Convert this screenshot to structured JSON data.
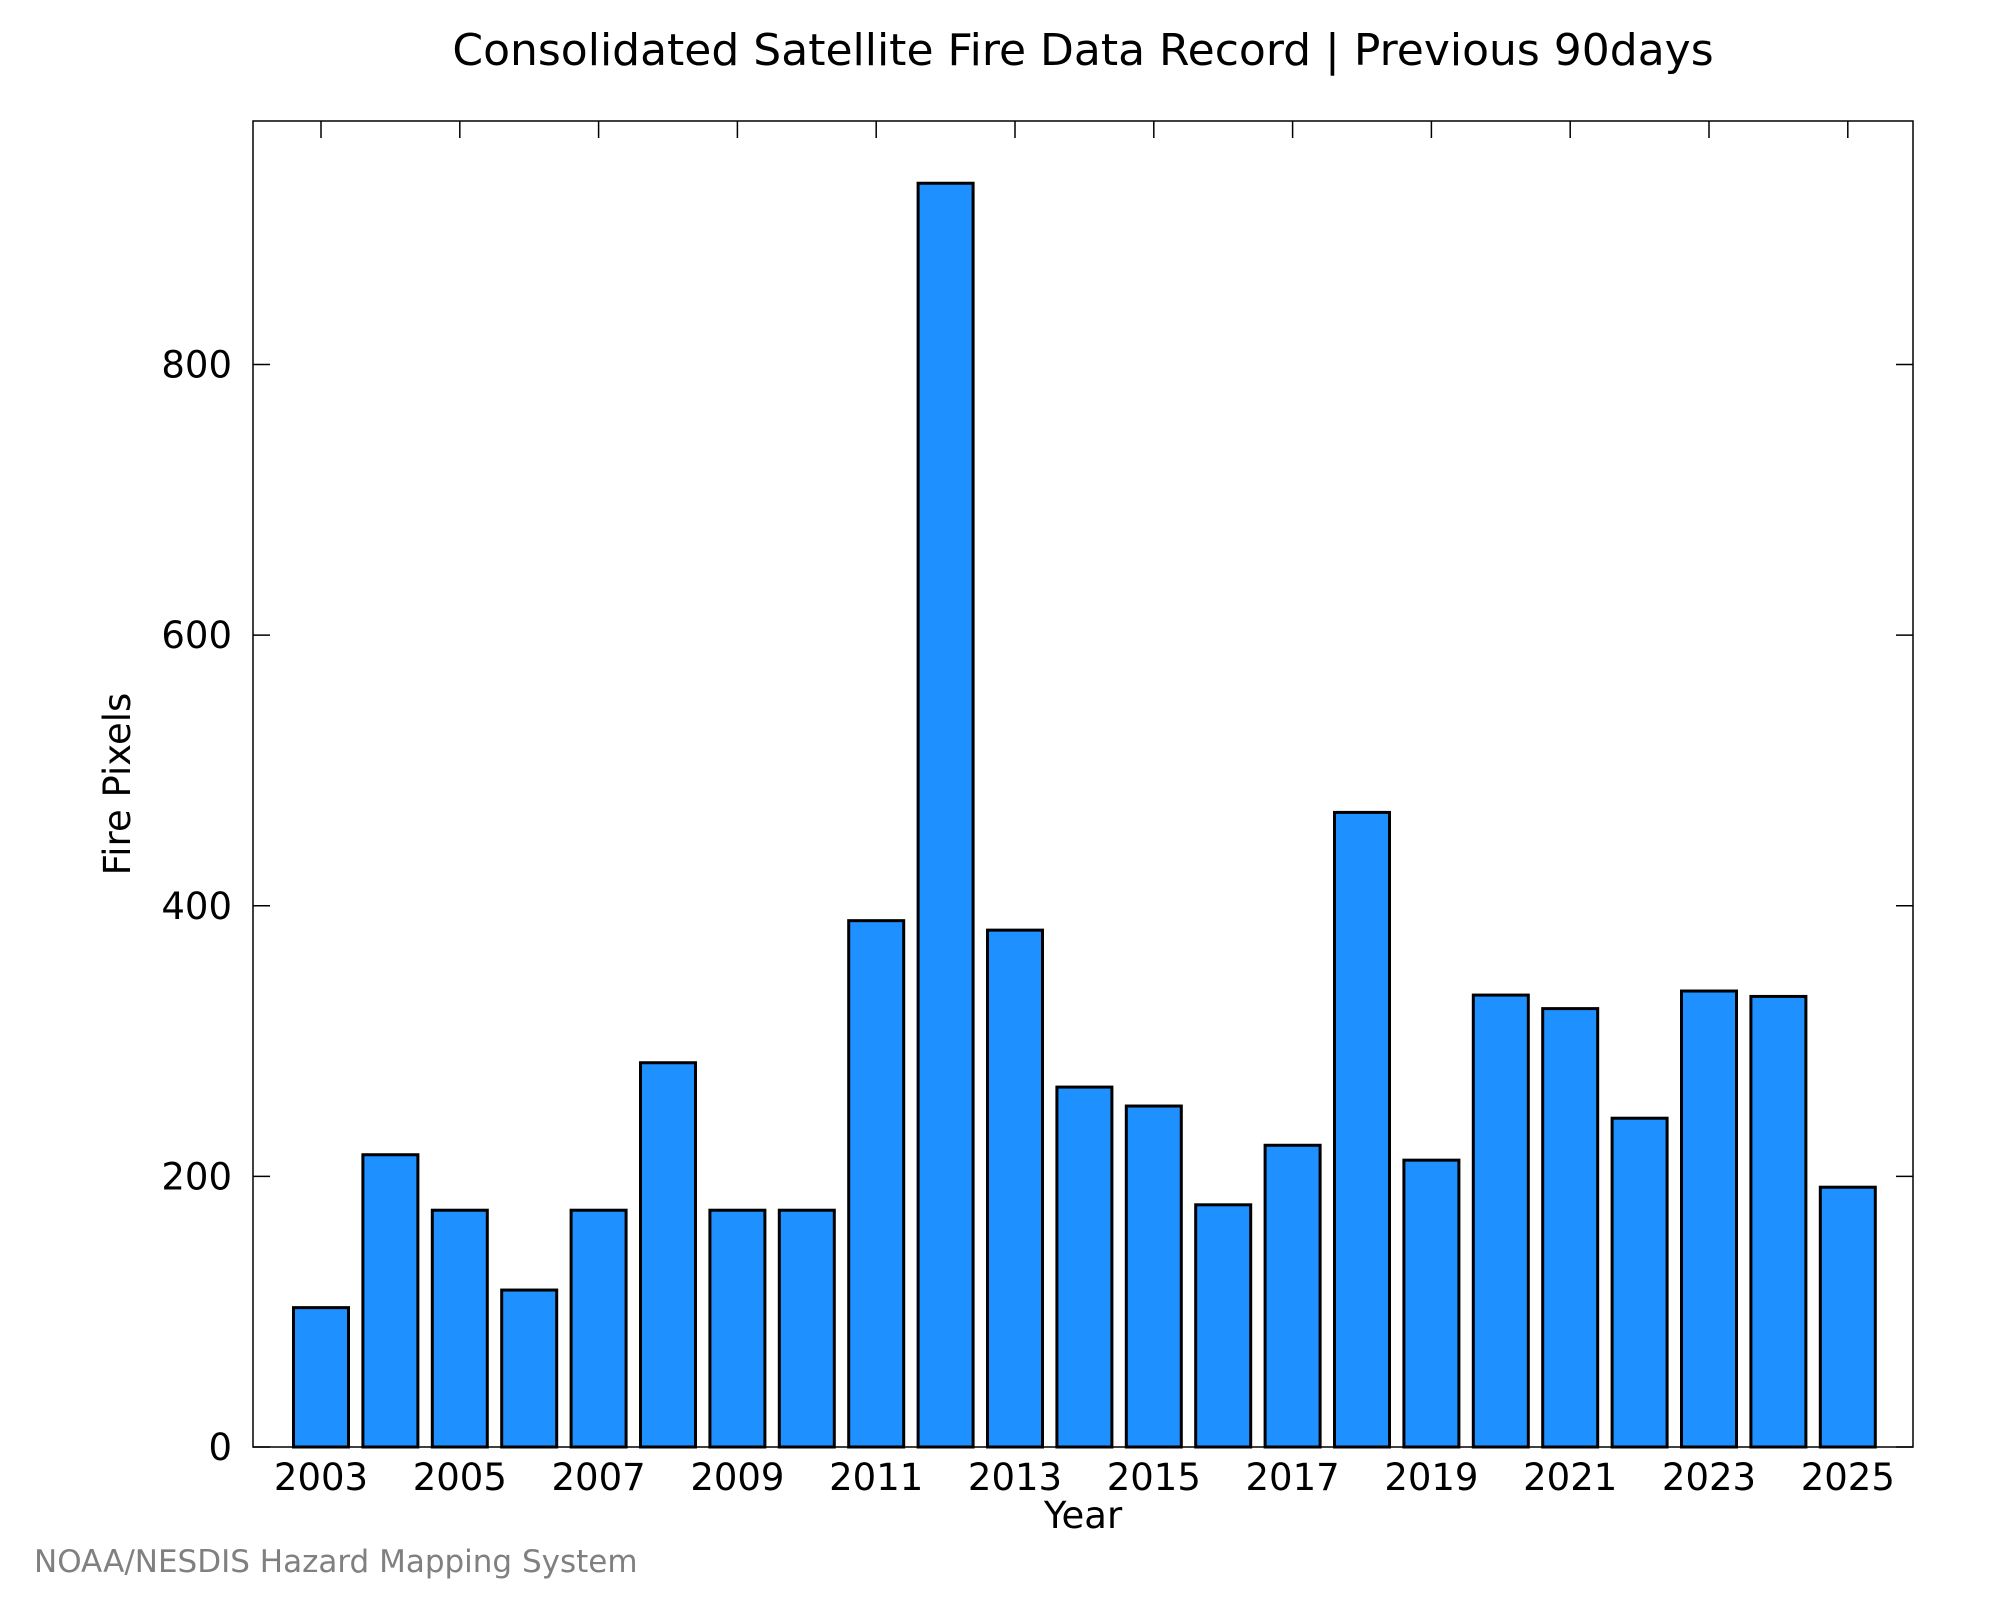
{
  "chart_data": {
    "type": "bar",
    "title": "Consolidated Satellite Fire Data Record | Previous 90days",
    "xlabel": "Year",
    "ylabel": "Fire Pixels",
    "categories": [
      "2003",
      "2004",
      "2005",
      "2006",
      "2007",
      "2008",
      "2009",
      "2010",
      "2011",
      "2012",
      "2013",
      "2014",
      "2015",
      "2016",
      "2017",
      "2018",
      "2019",
      "2020",
      "2021",
      "2022",
      "2023",
      "2024",
      "2025"
    ],
    "values": [
      103,
      216,
      175,
      116,
      175,
      284,
      175,
      175,
      389,
      934,
      382,
      266,
      252,
      179,
      223,
      469,
      212,
      334,
      324,
      243,
      337,
      333,
      192
    ],
    "ylim": [
      0,
      980
    ],
    "y_ticks": [
      "0",
      "200",
      "400",
      "600",
      "800"
    ],
    "x_tick_labels": [
      "2003",
      "2005",
      "2007",
      "2009",
      "2011",
      "2013",
      "2015",
      "2017",
      "2019",
      "2021",
      "2023",
      "2025"
    ],
    "grid": false,
    "bar_color": "#1e90ff",
    "edge_color": "#000000"
  },
  "credit": {
    "text": "NOAA/NESDIS Hazard Mapping System",
    "color": "#808080"
  }
}
